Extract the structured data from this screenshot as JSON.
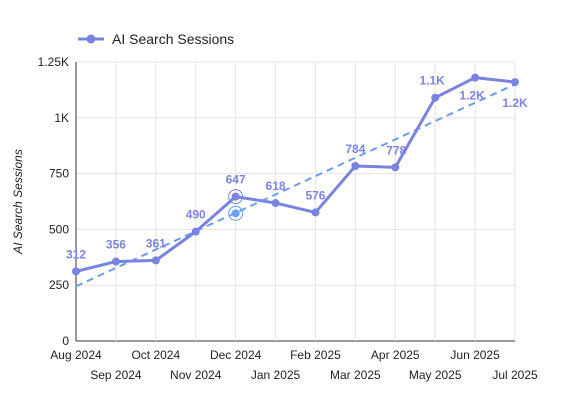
{
  "chart_data": {
    "type": "line",
    "legend": {
      "position": "top-left",
      "label": "AI Search Sessions"
    },
    "ylabel": "AI Search Sessions",
    "xlabel": "",
    "ylim": [
      0,
      1250
    ],
    "y_ticks": [
      0,
      250,
      500,
      750,
      1000,
      1250
    ],
    "y_tick_labels": [
      "0",
      "250",
      "500",
      "750",
      "1K",
      "1.25K"
    ],
    "categories": [
      "Aug 2024",
      "Sep 2024",
      "Oct 2024",
      "Nov 2024",
      "Dec 2024",
      "Jan 2025",
      "Feb 2025",
      "Mar 2025",
      "Apr 2025",
      "May 2025",
      "Jun 2025",
      "Jul 2025"
    ],
    "series": [
      {
        "name": "AI Search Sessions",
        "values": [
          312,
          356,
          361,
          490,
          647,
          618,
          576,
          784,
          778,
          1090,
          1180,
          1160
        ],
        "data_labels": [
          "312",
          "356",
          "361",
          "490",
          "647",
          "618",
          "576",
          "784",
          "778",
          "1.1K",
          "1.2K",
          "1.2K"
        ],
        "color": "#7b83e0"
      }
    ],
    "trendline": {
      "style": "dashed",
      "color": "#6a9ef0",
      "start_value": 245,
      "end_value": 1150,
      "highlight_index": 4,
      "highlight_value": 572
    },
    "grid": true,
    "colors": {
      "series": "#7b83e0",
      "trend": "#6a9ef0",
      "grid": "#e3e3e3",
      "axis": "#333333",
      "text": "#222222"
    }
  }
}
